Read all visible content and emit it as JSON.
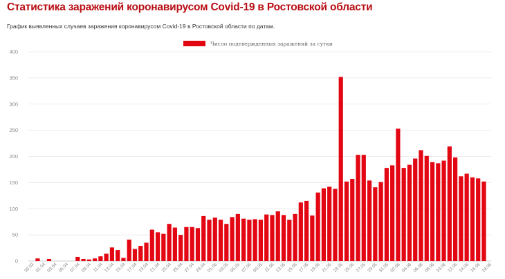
{
  "page": {
    "title": "Статистика заражений коронавирусом Covid-19 в Ростовской области",
    "subtitle": "График выявленных случаев заражения коронавирусом Covid-19 в Ростовской области по датам."
  },
  "colors": {
    "title": "#b80d12",
    "bar": "#e30613",
    "grid": "#e6e6e6",
    "tick": "#888888"
  },
  "chart_data": {
    "type": "bar",
    "title": "",
    "xlabel": "",
    "ylabel": "",
    "ylim": [
      0,
      400
    ],
    "yticks": [
      0,
      50,
      100,
      150,
      200,
      250,
      300,
      350,
      400
    ],
    "grid": true,
    "legend_position": "top-center",
    "series": [
      {
        "name": "Число подтвержденных заражений за сутки",
        "color": "#e30613",
        "values": [
          0,
          5,
          0,
          4,
          0,
          0,
          0,
          0,
          8,
          4,
          3,
          5,
          9,
          14,
          26,
          21,
          6,
          41,
          23,
          29,
          35,
          60,
          55,
          52,
          71,
          64,
          50,
          65,
          65,
          63,
          86,
          79,
          83,
          79,
          71,
          84,
          90,
          81,
          79,
          80,
          79,
          89,
          88,
          95,
          88,
          79,
          90,
          112,
          115,
          87,
          131,
          139,
          142,
          138,
          352,
          152,
          157,
          203,
          203,
          154,
          141,
          151,
          178,
          183,
          253,
          178,
          184,
          196,
          212,
          201,
          189,
          187,
          192,
          219,
          198,
          162,
          167,
          160,
          158,
          152
        ]
      }
    ],
    "categories": [
      "30.03",
      "31.03",
      "01.04",
      "02.04",
      "03.04",
      "04.04",
      "05.04",
      "06.04",
      "07.04",
      "08.04",
      "09.04",
      "10.04",
      "11.04",
      "12.04",
      "13.04",
      "14.04",
      "15.04",
      "16.04",
      "17.04",
      "18.04",
      "19.04",
      "20.04",
      "21.04",
      "22.04",
      "23.04",
      "24.04",
      "25.04",
      "26.04",
      "27.04",
      "28.04",
      "29.04",
      "30.04",
      "01.05",
      "02.05",
      "03.05",
      "04.05",
      "05.05",
      "06.05",
      "07.05",
      "08.05",
      "09.05",
      "10.05",
      "11.05",
      "12.05",
      "13.05",
      "14.05",
      "15.05",
      "16.05",
      "17.05",
      "18.05",
      "19.05",
      "20.05",
      "21.05",
      "22.05",
      "23.05",
      "24.05",
      "25.05",
      "26.05",
      "27.05",
      "28.05",
      "29.05",
      "30.05",
      "31.05",
      "01.06",
      "02.06",
      "03.06",
      "04.06",
      "05.06",
      "06.06",
      "07.06",
      "08.06",
      "09.06",
      "10.06",
      "11.06",
      "12.06",
      "13.06",
      "14.06",
      "15.06",
      "16.06",
      "17.06"
    ],
    "visible_tick_labels": [
      "30.03",
      "01.04",
      "03.04",
      "05.04",
      "07.04",
      "09.04",
      "11.04",
      "13.04",
      "15.04",
      "17.04",
      "19.04",
      "21.04",
      "23.04",
      "25.04",
      "27.04",
      "29.04",
      "01.05",
      "03.05",
      "05.05",
      "07.05",
      "09.05",
      "11.05",
      "13.05",
      "15.05",
      "17.05",
      "19.05",
      "21.05",
      "23.05",
      "25.05",
      "27.05",
      "29.05",
      "31.05",
      "02.06",
      "04.06",
      "06.06",
      "08.06",
      "10.06",
      "12.06",
      "14.06",
      "16.06",
      "18.06"
    ]
  }
}
